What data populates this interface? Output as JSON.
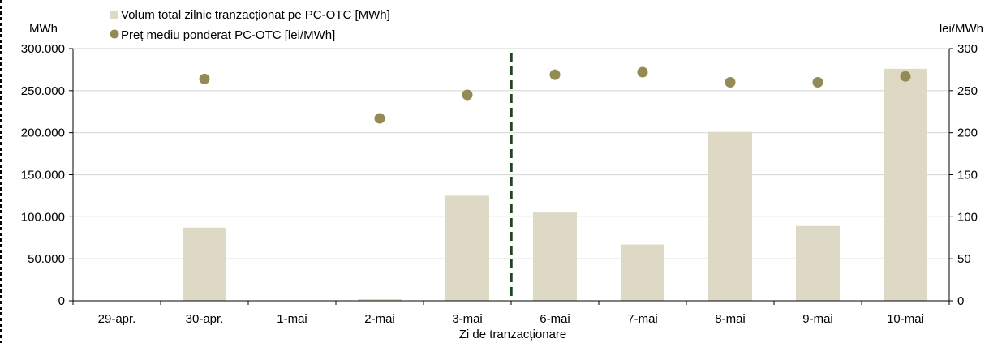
{
  "chart_data": {
    "type": "bar",
    "categories": [
      "29-apr.",
      "30-apr.",
      "1-mai",
      "2-mai",
      "3-mai",
      "6-mai",
      "7-mai",
      "8-mai",
      "9-mai",
      "10-mai"
    ],
    "series": [
      {
        "name": "Volum total zilnic tranzacționat pe PC-OTC [MWh]",
        "type": "bar",
        "axis": "left",
        "color": "#ddd9c4",
        "values": [
          0,
          87000,
          0,
          2000,
          125000,
          105000,
          67000,
          201000,
          89000,
          276000
        ]
      },
      {
        "name": "Preț mediu ponderat PC-OTC [lei/MWh]",
        "type": "scatter",
        "axis": "right",
        "color": "#948a54",
        "values": [
          null,
          264,
          null,
          217,
          245,
          269,
          272,
          260,
          260,
          267
        ]
      }
    ],
    "xlabel": "Zi de tranzacționare",
    "ylabel_left": "MWh",
    "ylabel_right": "lei/MWh",
    "ylim_left": [
      0,
      300000
    ],
    "ylim_right": [
      0,
      300
    ],
    "yticks_left": [
      0,
      50000,
      100000,
      150000,
      200000,
      250000,
      300000
    ],
    "yticks_left_labels": [
      "0",
      "50.000",
      "100.000",
      "150.000",
      "200.000",
      "250.000",
      "300.000"
    ],
    "yticks_right": [
      0,
      50,
      100,
      150,
      200,
      250,
      300
    ],
    "yticks_right_labels": [
      "0",
      "50",
      "100",
      "150",
      "200",
      "250",
      "300"
    ],
    "grid": true,
    "legend_position": "top-left",
    "separator_after_category": "3-mai",
    "separator_color": "#1e4620",
    "grid_color": "#d9d9d9"
  }
}
